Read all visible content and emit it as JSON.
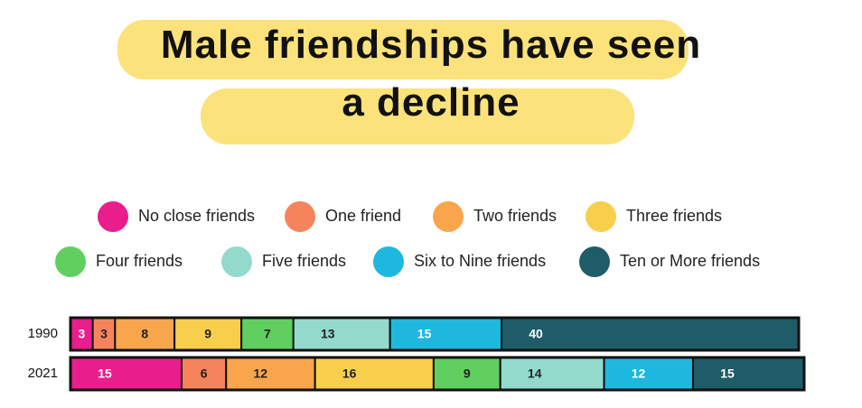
{
  "chart_data": {
    "type": "stacked-bar",
    "title": "Male friendships have seen a decline",
    "categories": [
      "1990",
      "2021"
    ],
    "series": [
      {
        "name": "No close friends",
        "color": "#ea1d8d",
        "values": [
          3,
          15
        ]
      },
      {
        "name": "One friend",
        "color": "#f5845c",
        "values": [
          3,
          6
        ]
      },
      {
        "name": "Two friends",
        "color": "#f9a54c",
        "values": [
          8,
          12
        ]
      },
      {
        "name": "Three friends",
        "color": "#f8cf4d",
        "values": [
          9,
          16
        ]
      },
      {
        "name": "Four friends",
        "color": "#5fcf5f",
        "values": [
          7,
          9
        ]
      },
      {
        "name": "Five friends",
        "color": "#93dacd",
        "values": [
          13,
          14
        ]
      },
      {
        "name": "Six to Nine friends",
        "color": "#1eb8de",
        "values": [
          15,
          12
        ]
      },
      {
        "name": "Ten or More friends",
        "color": "#1e5c67",
        "values": [
          40,
          15
        ]
      }
    ]
  }
}
